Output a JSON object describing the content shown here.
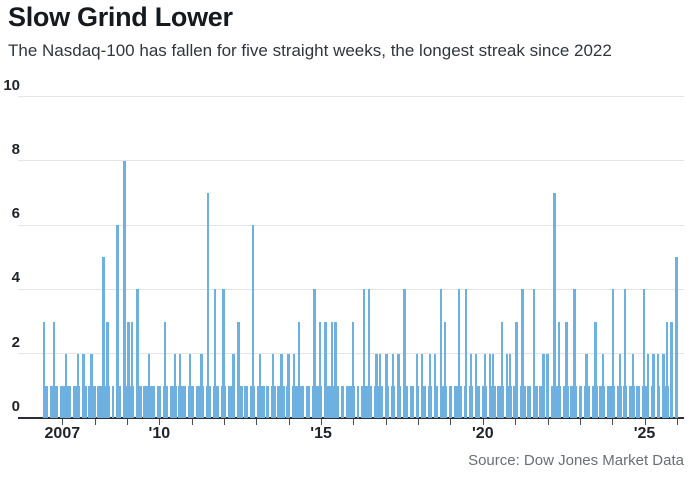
{
  "header": {
    "title": "Slow Grind Lower",
    "subtitle": "The Nasdaq-100 has fallen for five straight weeks, the longest streak since 2022"
  },
  "footer": {
    "source": "Source: Dow Jones Market Data"
  },
  "chart_data": {
    "type": "bar",
    "title": "Slow Grind Lower",
    "subtitle": "The Nasdaq-100 has fallen for five straight weeks, the longest streak since 2022",
    "source": "Source: Dow Jones Market Data",
    "xlabel": "",
    "ylabel": "",
    "ylim": [
      0,
      10
    ],
    "yticks": [
      0,
      2,
      4,
      6,
      8,
      10
    ],
    "x_domain": [
      2005.63,
      2026.22
    ],
    "x_minor_ticks": [
      2007,
      2008,
      2009,
      2010,
      2011,
      2012,
      2013,
      2014,
      2015,
      2016,
      2017,
      2018,
      2019,
      2020,
      2021,
      2022,
      2023,
      2024,
      2025,
      2026
    ],
    "x_tick_labels": [
      {
        "year": 2007,
        "label": "2007"
      },
      {
        "year": 2010,
        "label": "'10"
      },
      {
        "year": 2015,
        "label": "'15"
      },
      {
        "year": 2020,
        "label": "'20"
      },
      {
        "year": 2025,
        "label": "'25"
      }
    ],
    "grid_on": true,
    "legend": "none",
    "bar_color": "#6eb1e1",
    "grid_color": "#e4e4e4",
    "axis_color": "#2b2f34",
    "bars": [
      [
        2006.44,
        3
      ],
      [
        2006.75,
        3
      ],
      [
        2007.11,
        2
      ],
      [
        2007.49,
        2
      ],
      [
        2007.65,
        2
      ],
      [
        2007.91,
        2
      ],
      [
        2008.27,
        5
      ],
      [
        2008.4,
        3
      ],
      [
        2008.71,
        6
      ],
      [
        2008.92,
        8
      ],
      [
        2009.04,
        3
      ],
      [
        2009.16,
        3
      ],
      [
        2009.32,
        4
      ],
      [
        2009.68,
        2
      ],
      [
        2010.18,
        3
      ],
      [
        2010.48,
        2
      ],
      [
        2010.64,
        2
      ],
      [
        2010.95,
        2
      ],
      [
        2011.31,
        2
      ],
      [
        2011.51,
        7
      ],
      [
        2011.72,
        4
      ],
      [
        2011.98,
        4
      ],
      [
        2012.29,
        2
      ],
      [
        2012.44,
        3
      ],
      [
        2012.9,
        6
      ],
      [
        2013.11,
        2
      ],
      [
        2013.52,
        2
      ],
      [
        2013.78,
        2
      ],
      [
        2013.99,
        2
      ],
      [
        2014.17,
        2
      ],
      [
        2014.32,
        3
      ],
      [
        2014.79,
        4
      ],
      [
        2014.97,
        3
      ],
      [
        2015.14,
        3
      ],
      [
        2015.33,
        3
      ],
      [
        2015.45,
        3
      ],
      [
        2015.99,
        3
      ],
      [
        2016.32,
        4
      ],
      [
        2016.48,
        4
      ],
      [
        2016.72,
        2
      ],
      [
        2016.82,
        2
      ],
      [
        2017.03,
        2
      ],
      [
        2017.23,
        2
      ],
      [
        2017.39,
        2
      ],
      [
        2017.58,
        4
      ],
      [
        2017.97,
        2
      ],
      [
        2018.12,
        2
      ],
      [
        2018.37,
        2
      ],
      [
        2018.52,
        2
      ],
      [
        2018.7,
        4
      ],
      [
        2018.83,
        3
      ],
      [
        2019.27,
        4
      ],
      [
        2019.48,
        4
      ],
      [
        2019.63,
        2
      ],
      [
        2019.79,
        2
      ],
      [
        2020.07,
        2
      ],
      [
        2020.22,
        2
      ],
      [
        2020.32,
        2
      ],
      [
        2020.59,
        3
      ],
      [
        2020.75,
        2
      ],
      [
        2020.84,
        2
      ],
      [
        2021.04,
        3
      ],
      [
        2021.23,
        4
      ],
      [
        2021.59,
        4
      ],
      [
        2021.87,
        2
      ],
      [
        2022.0,
        2
      ],
      [
        2022.22,
        7
      ],
      [
        2022.35,
        3
      ],
      [
        2022.59,
        3
      ],
      [
        2022.84,
        4
      ],
      [
        2023.21,
        2
      ],
      [
        2023.48,
        3
      ],
      [
        2023.72,
        2
      ],
      [
        2024.03,
        4
      ],
      [
        2024.24,
        2
      ],
      [
        2024.39,
        4
      ],
      [
        2024.65,
        2
      ],
      [
        2024.98,
        4
      ],
      [
        2025.11,
        2
      ],
      [
        2025.27,
        2
      ],
      [
        2025.42,
        2
      ],
      [
        2025.58,
        2
      ],
      [
        2025.7,
        3
      ],
      [
        2025.84,
        3
      ],
      [
        2025.99,
        5
      ]
    ],
    "ones_band": {
      "value": 1,
      "start": 2006.42,
      "end": 2026.04,
      "gap_width": 0.055,
      "gaps": [
        2006.58,
        2006.9,
        2007.3,
        2007.57,
        2007.78,
        2008.06,
        2008.5,
        2008.62,
        2008.85,
        2009.25,
        2009.48,
        2009.9,
        2010.08,
        2010.3,
        2010.56,
        2010.85,
        2011.1,
        2011.42,
        2011.62,
        2011.88,
        2012.1,
        2012.36,
        2012.6,
        2012.78,
        2013.0,
        2013.28,
        2013.42,
        2013.62,
        2013.9,
        2014.08,
        2014.5,
        2014.68,
        2015.06,
        2015.58,
        2015.75,
        2016.08,
        2016.2,
        2016.6,
        2016.95,
        2017.12,
        2017.32,
        2017.5,
        2017.72,
        2017.9,
        2018.05,
        2018.28,
        2018.45,
        2018.65,
        2018.92,
        2019.08,
        2019.38,
        2019.55,
        2019.72,
        2019.95,
        2020.15,
        2020.42,
        2020.68,
        2020.92,
        2021.12,
        2021.35,
        2021.52,
        2021.72,
        2021.95,
        2022.08,
        2022.45,
        2022.68,
        2022.95,
        2023.1,
        2023.35,
        2023.58,
        2023.82,
        2024.12,
        2024.32,
        2024.5,
        2024.72,
        2024.9,
        2025.18,
        2025.35,
        2025.52,
        2025.78,
        2025.92
      ]
    }
  }
}
